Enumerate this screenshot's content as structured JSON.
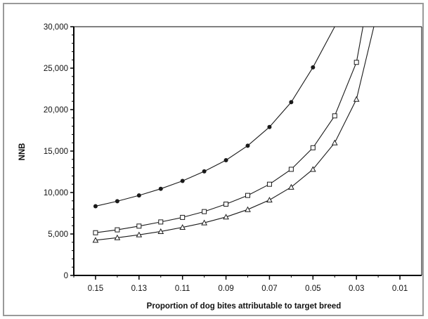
{
  "chart_data": {
    "type": "line",
    "xlabel": "Proportion of dog bites attributable to target breed",
    "ylabel": "NNB",
    "x_ticks": [
      0.15,
      0.13,
      0.11,
      0.09,
      0.07,
      0.05,
      0.03,
      0.01
    ],
    "x_tick_labels": [
      "0.15",
      "0.13",
      "0.11",
      "0.09",
      "0.07",
      "0.05",
      "0.03",
      "0.01"
    ],
    "y_ticks": [
      0,
      5000,
      10000,
      15000,
      20000,
      25000,
      30000
    ],
    "y_tick_labels": [
      "0",
      "5,000",
      "10,000",
      "15,000",
      "20,000",
      "25,000",
      "30,000"
    ],
    "xlim": [
      0.16,
      0.0
    ],
    "ylim": [
      0,
      30000
    ],
    "grid": false,
    "legend": "none",
    "colors": {
      "line": "#1a1a1a",
      "axis": "#000000"
    },
    "series": [
      {
        "marker": "filled-circle",
        "x": [
          0.15,
          0.14,
          0.13,
          0.12,
          0.11,
          0.1,
          0.09,
          0.08,
          0.07,
          0.06,
          0.05
        ],
        "values": [
          8350,
          8950,
          9650,
          10450,
          11400,
          12550,
          13900,
          15650,
          17900,
          20900,
          25100
        ],
        "extend_to": [
          0.04,
          30000
        ]
      },
      {
        "marker": "open-square",
        "x": [
          0.15,
          0.14,
          0.13,
          0.12,
          0.11,
          0.1,
          0.09,
          0.08,
          0.07,
          0.06,
          0.05,
          0.04,
          0.03
        ],
        "values": [
          5150,
          5500,
          5950,
          6450,
          7000,
          7700,
          8600,
          9650,
          11000,
          12800,
          15400,
          19250,
          25700
        ],
        "extend_to": [
          0.027,
          30000
        ]
      },
      {
        "marker": "open-triangle",
        "x": [
          0.15,
          0.14,
          0.13,
          0.12,
          0.11,
          0.1,
          0.09,
          0.08,
          0.07,
          0.06,
          0.05,
          0.04,
          0.03
        ],
        "values": [
          4250,
          4550,
          4900,
          5300,
          5800,
          6350,
          7050,
          7950,
          9100,
          10650,
          12800,
          16000,
          21250
        ],
        "extend_to": [
          0.022,
          30000
        ]
      }
    ]
  }
}
